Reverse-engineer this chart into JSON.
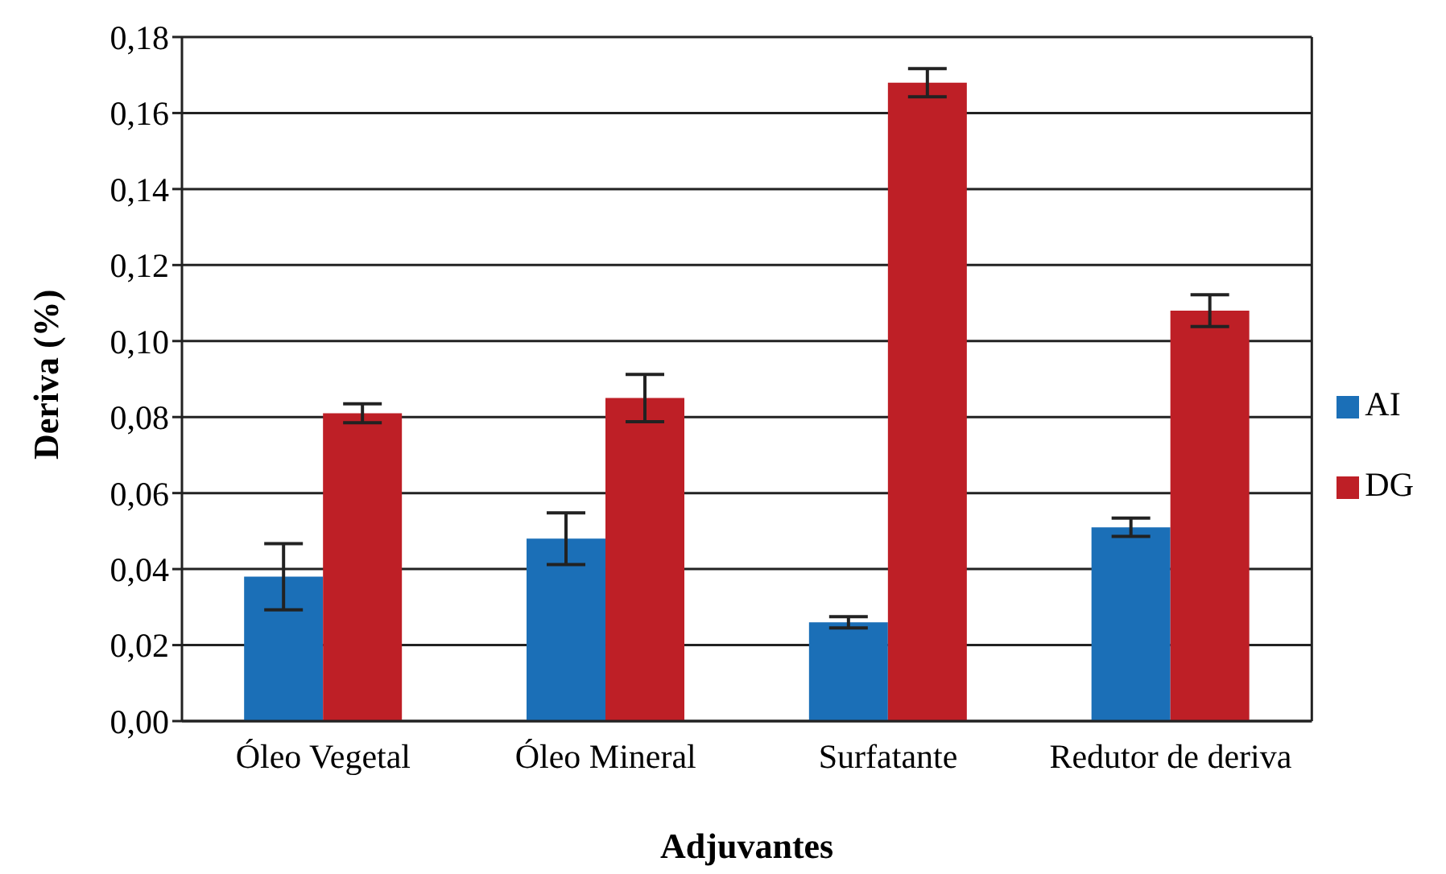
{
  "chart_data": {
    "type": "bar",
    "xlabel": "Adjuvantes",
    "ylabel": "Deriva (%)",
    "categories": [
      "Óleo Vegetal",
      "Óleo Mineral",
      "Surfatante",
      "Redutor de deriva"
    ],
    "series": [
      {
        "name": "AI",
        "color": "#1b6fb7",
        "values": [
          0.038,
          0.048,
          0.026,
          0.051
        ],
        "errors": [
          0.0087,
          0.0068,
          0.0015,
          0.0024
        ]
      },
      {
        "name": "DG",
        "color": "#be1f26",
        "values": [
          0.081,
          0.085,
          0.168,
          0.108
        ],
        "errors": [
          0.0025,
          0.0062,
          0.0037,
          0.0042
        ]
      }
    ],
    "ylim": [
      0,
      0.18
    ],
    "yticks": [
      {
        "value": 0,
        "label": "0,00"
      },
      {
        "value": 0.02,
        "label": "0,02"
      },
      {
        "value": 0.04,
        "label": "0,04"
      },
      {
        "value": 0.06,
        "label": "0,06"
      },
      {
        "value": 0.08,
        "label": "0,08"
      },
      {
        "value": 0.1,
        "label": "0,10"
      },
      {
        "value": 0.12,
        "label": "0,12"
      },
      {
        "value": 0.14,
        "label": "0,14"
      },
      {
        "value": 0.16,
        "label": "0,16"
      },
      {
        "value": 0.18,
        "label": "0,18"
      }
    ],
    "grid": "y",
    "legend": "right"
  }
}
